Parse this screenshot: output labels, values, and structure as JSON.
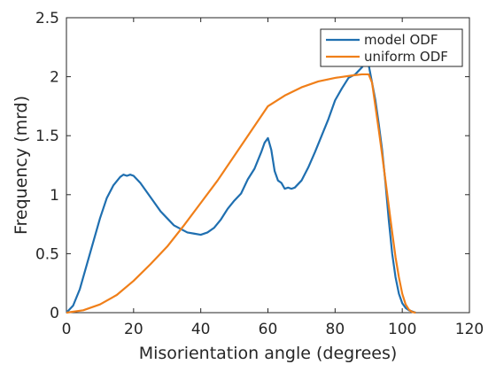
{
  "chart_data": {
    "type": "line",
    "title": "",
    "xlabel": "Misorientation angle (degrees)",
    "ylabel": "Frequency (mrd)",
    "xlim": [
      0,
      120
    ],
    "ylim": [
      0,
      2.5
    ],
    "xticks": [
      "0",
      "20",
      "40",
      "60",
      "80",
      "100",
      "120"
    ],
    "yticks": [
      "0",
      "0.5",
      "1",
      "1.5",
      "2",
      "2.5"
    ],
    "grid": false,
    "legend_position": "top-right",
    "series": [
      {
        "name": "model ODF",
        "color": "#1f6fb0",
        "x": [
          0,
          2,
          4,
          6,
          8,
          10,
          12,
          14,
          16,
          17,
          18,
          19,
          20,
          22,
          24,
          26,
          28,
          30,
          32,
          34,
          36,
          38,
          40,
          42,
          44,
          46,
          48,
          50,
          52,
          54,
          56,
          58,
          59,
          60,
          61,
          62,
          63,
          64,
          65,
          66,
          67,
          68,
          70,
          72,
          74,
          76,
          78,
          80,
          82,
          84,
          86,
          88,
          89,
          90,
          91,
          92,
          93,
          94,
          95,
          96,
          97,
          98,
          99,
          100,
          101,
          102,
          103,
          104
        ],
        "y": [
          0,
          0.06,
          0.2,
          0.4,
          0.6,
          0.8,
          0.97,
          1.08,
          1.15,
          1.17,
          1.16,
          1.17,
          1.16,
          1.1,
          1.02,
          0.94,
          0.86,
          0.8,
          0.74,
          0.71,
          0.68,
          0.67,
          0.66,
          0.68,
          0.72,
          0.79,
          0.88,
          0.95,
          1.01,
          1.13,
          1.22,
          1.36,
          1.44,
          1.48,
          1.38,
          1.2,
          1.12,
          1.1,
          1.05,
          1.06,
          1.05,
          1.06,
          1.12,
          1.23,
          1.36,
          1.5,
          1.64,
          1.8,
          1.9,
          1.99,
          2.02,
          2.08,
          2.12,
          2.1,
          1.95,
          1.8,
          1.6,
          1.38,
          1.1,
          0.78,
          0.5,
          0.3,
          0.16,
          0.08,
          0.04,
          0.02,
          0.01,
          0
        ]
      },
      {
        "name": "uniform ODF",
        "color": "#f07f19",
        "x": [
          0,
          5,
          10,
          15,
          20,
          25,
          30,
          35,
          40,
          45,
          50,
          55,
          60,
          65,
          70,
          75,
          80,
          85,
          88,
          90,
          91,
          92,
          93,
          94,
          95,
          96,
          97,
          98,
          99,
          100,
          101,
          102,
          103,
          104
        ],
        "y": [
          0,
          0.02,
          0.07,
          0.15,
          0.27,
          0.41,
          0.56,
          0.74,
          0.93,
          1.12,
          1.33,
          1.54,
          1.75,
          1.84,
          1.91,
          1.96,
          1.99,
          2.01,
          2.02,
          2.02,
          1.95,
          1.75,
          1.55,
          1.34,
          1.12,
          0.9,
          0.68,
          0.47,
          0.3,
          0.16,
          0.07,
          0.025,
          0.005,
          0
        ]
      }
    ]
  }
}
